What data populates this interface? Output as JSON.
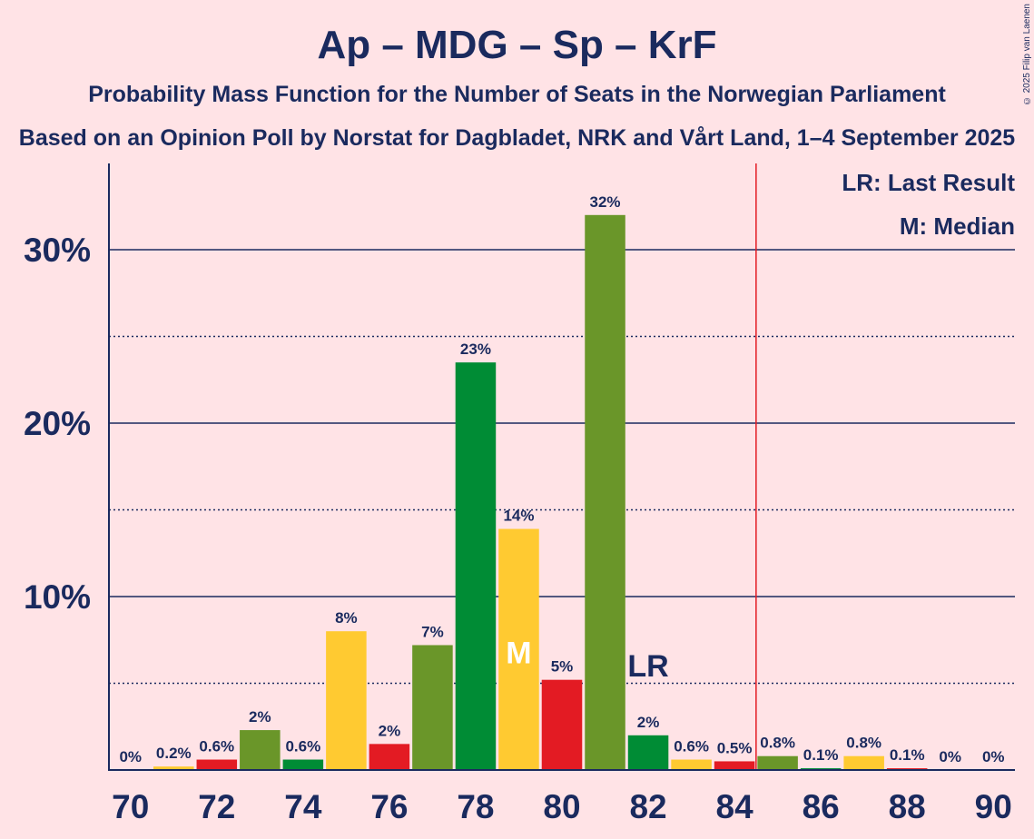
{
  "title": "Ap – MDG – Sp – KrF",
  "subtitle": "Probability Mass Function for the Number of Seats in the Norwegian Parliament",
  "subtitle2": "Based on an Opinion Poll by Norstat for Dagbladet, NRK and Vårt Land, 1–4 September 2025",
  "copyright": "© 2025 Filip van Laenen",
  "legend": {
    "last_result": "LR: Last Result",
    "median": "M: Median"
  },
  "colors": {
    "background": "#ffe3e6",
    "text": "#1a2a5e",
    "ap": "#e31b23",
    "mdg": "#6a9629",
    "sp": "#008c35",
    "krf": "#ffca31",
    "lr_line": "#e31b23"
  },
  "chart_data": {
    "type": "bar",
    "x": [
      70,
      71,
      72,
      73,
      74,
      75,
      76,
      77,
      78,
      79,
      80,
      81,
      82,
      83,
      84,
      85,
      86,
      87,
      88,
      89,
      90
    ],
    "values": [
      0,
      0.2,
      0.6,
      2.3,
      0.6,
      8.0,
      1.5,
      7.2,
      23.5,
      13.9,
      5.2,
      32.0,
      2.0,
      0.6,
      0.5,
      0.8,
      0.1,
      0.8,
      0.1,
      0,
      0
    ],
    "value_labels": [
      "0%",
      "0.2%",
      "0.6%",
      "2%",
      "0.6%",
      "8%",
      "2%",
      "7%",
      "23%",
      "14%",
      "5%",
      "32%",
      "2%",
      "0.6%",
      "0.5%",
      "0.8%",
      "0.1%",
      "0.8%",
      "0.1%",
      "0%",
      "0%"
    ],
    "bar_colors": [
      "#e31b23",
      "#ffca31",
      "#e31b23",
      "#6a9629",
      "#008c35",
      "#ffca31",
      "#e31b23",
      "#6a9629",
      "#008c35",
      "#ffca31",
      "#e31b23",
      "#6a9629",
      "#008c35",
      "#ffca31",
      "#e31b23",
      "#6a9629",
      "#008c35",
      "#ffca31",
      "#e31b23",
      "#6a9629",
      "#008c35"
    ],
    "x_tick_labels": [
      "70",
      "72",
      "74",
      "76",
      "78",
      "80",
      "82",
      "84",
      "86",
      "88",
      "90"
    ],
    "x_ticks": [
      70,
      72,
      74,
      76,
      78,
      80,
      82,
      84,
      86,
      88,
      90
    ],
    "y_tick_labels": [
      "10%",
      "20%",
      "30%"
    ],
    "y_ticks": [
      10,
      20,
      30
    ],
    "y_minor_ticks": [
      5,
      15,
      25
    ],
    "ylim": [
      0,
      35
    ],
    "xlim": [
      69.5,
      90.5
    ],
    "last_result": 84.5,
    "last_result_label": "LR",
    "last_result_label_seat": 82,
    "median": 79,
    "median_label": "M",
    "grid": true
  }
}
